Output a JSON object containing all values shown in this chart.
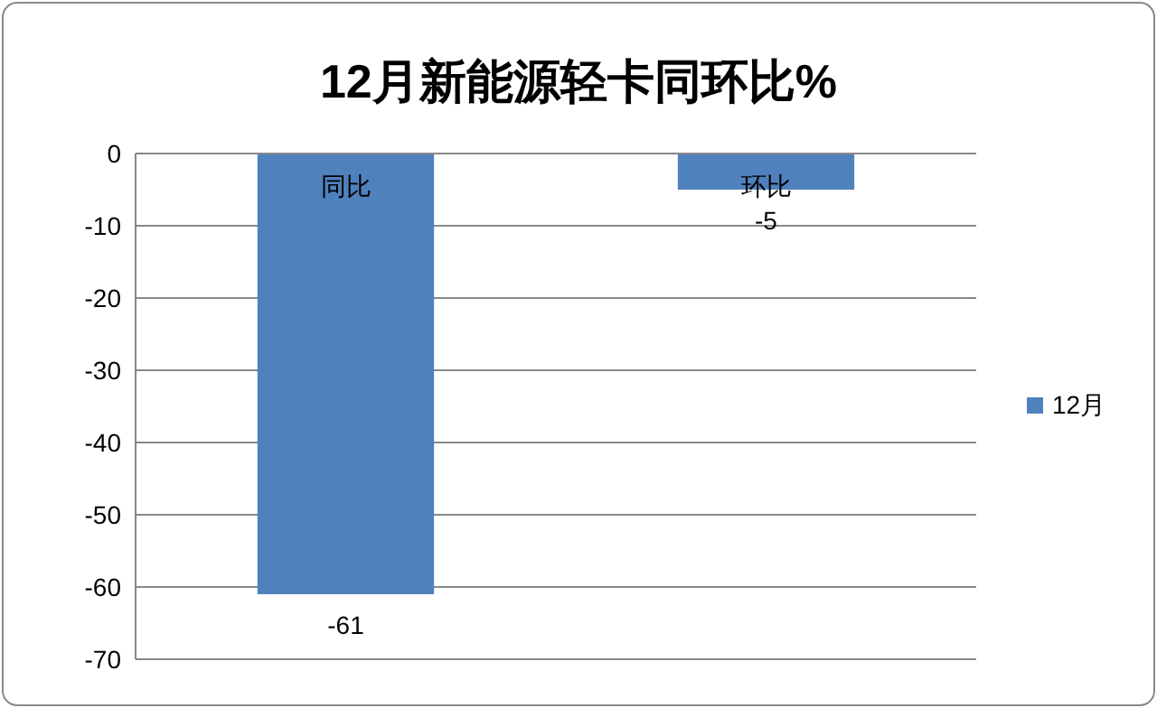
{
  "chart_data": {
    "type": "bar",
    "title": "12月新能源轻卡同环比%",
    "categories": [
      "同比",
      "环比"
    ],
    "series": [
      {
        "name": "12月",
        "color": "#4f81bd",
        "values": [
          -61,
          -5
        ]
      }
    ],
    "ylim": [
      -70,
      0
    ],
    "yticks": [
      0,
      -10,
      -20,
      -30,
      -40,
      -50,
      -60,
      -70
    ],
    "grid": "y",
    "legend": "right",
    "data_labels": true
  }
}
